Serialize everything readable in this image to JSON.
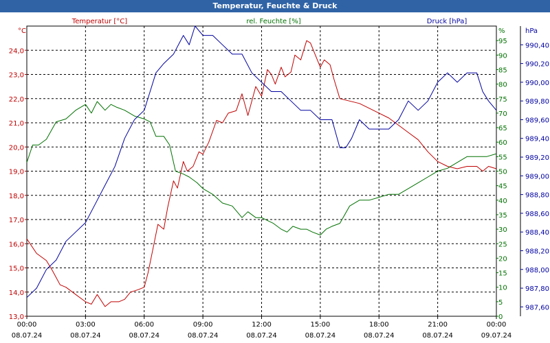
{
  "window": {
    "title": "Temperatur, Feuchte & Druck"
  },
  "chart_data": {
    "type": "line",
    "title": "Temperatur, Feuchte & Druck",
    "grid": true,
    "x_ticks": [
      {
        "time": "00:00",
        "date": "08.07.24"
      },
      {
        "time": "03:00",
        "date": "08.07.24"
      },
      {
        "time": "06:00",
        "date": "08.07.24"
      },
      {
        "time": "09:00",
        "date": "08.07.24"
      },
      {
        "time": "12:00",
        "date": "08.07.24"
      },
      {
        "time": "15:00",
        "date": "08.07.24"
      },
      {
        "time": "18:00",
        "date": "08.07.24"
      },
      {
        "time": "21:00",
        "date": "08.07.24"
      },
      {
        "time": "00:00",
        "date": "09.07.24"
      }
    ],
    "x_range_hours": [
      0,
      24
    ],
    "axes": {
      "left": {
        "unit": "°C",
        "color": "#c00000",
        "range": [
          13.0,
          25.0
        ],
        "ticks": [
          "13,0",
          "14,0",
          "15,0",
          "16,0",
          "17,0",
          "18,0",
          "19,0",
          "20,0",
          "21,0",
          "22,0",
          "23,0",
          "24,0"
        ]
      },
      "mid": {
        "unit": "%",
        "color": "#007000",
        "range": [
          0,
          100
        ],
        "ticks": [
          "0",
          "5",
          "10",
          "15",
          "20",
          "25",
          "30",
          "35",
          "40",
          "45",
          "50",
          "55",
          "60",
          "65",
          "70",
          "75",
          "80",
          "85",
          "90",
          "95"
        ]
      },
      "right": {
        "unit": "hPa",
        "color": "#0000a0",
        "range": [
          987.5,
          990.6
        ],
        "ticks": [
          "987,60",
          "987,80",
          "988,00",
          "988,20",
          "988,40",
          "988,60",
          "988,80",
          "989,00",
          "989,20",
          "989,40",
          "989,60",
          "989,80",
          "990,00",
          "990,20",
          "990,40"
        ]
      }
    },
    "series": [
      {
        "name": "Temperatur [°C]",
        "color": "#c00000",
        "axis": "left",
        "x": [
          0,
          0.5,
          1,
          1.3,
          1.7,
          2,
          2.5,
          3,
          3.3,
          3.6,
          4,
          4.3,
          4.7,
          5,
          5.3,
          5.7,
          6,
          6.2,
          6.5,
          6.7,
          7,
          7.2,
          7.5,
          7.7,
          8,
          8.2,
          8.5,
          8.8,
          9,
          9.3,
          9.7,
          10,
          10.3,
          10.7,
          11,
          11.3,
          11.7,
          12,
          12.3,
          12.5,
          12.7,
          13,
          13.2,
          13.5,
          13.7,
          14,
          14.3,
          14.5,
          14.7,
          15,
          15.2,
          15.5,
          15.7,
          16,
          16.5,
          17,
          17.5,
          18,
          18.5,
          19,
          19.5,
          20,
          20.5,
          21,
          21.5,
          22,
          22.5,
          23,
          23.3,
          23.6,
          24
        ],
        "y": [
          16.2,
          15.6,
          15.3,
          14.9,
          14.3,
          14.2,
          13.9,
          13.6,
          13.5,
          13.9,
          13.4,
          13.6,
          13.6,
          13.7,
          14.0,
          14.1,
          14.2,
          14.8,
          16.0,
          16.8,
          16.6,
          17.5,
          18.6,
          18.3,
          19.4,
          19.0,
          19.2,
          19.8,
          19.7,
          20.2,
          21.1,
          21.0,
          21.4,
          21.5,
          22.2,
          21.3,
          22.5,
          22.1,
          23.2,
          23.0,
          22.6,
          23.3,
          22.9,
          23.1,
          23.8,
          23.6,
          24.4,
          24.3,
          23.9,
          23.3,
          23.6,
          23.4,
          22.8,
          22.0,
          21.9,
          21.8,
          21.6,
          21.4,
          21.2,
          20.9,
          20.6,
          20.3,
          19.8,
          19.4,
          19.2,
          19.1,
          19.2,
          19.2,
          19.0,
          19.2,
          19.1
        ]
      },
      {
        "name": "rel. Feuchte [%]",
        "color": "#007000",
        "axis": "mid",
        "x": [
          0,
          0.3,
          0.6,
          1,
          1.5,
          2,
          2.5,
          3,
          3.3,
          3.6,
          4,
          4.3,
          4.6,
          5,
          5.5,
          6,
          6.3,
          6.6,
          7,
          7.3,
          7.6,
          8,
          8.3,
          8.7,
          9,
          9.5,
          10,
          10.5,
          11,
          11.3,
          11.7,
          12,
          12.3,
          12.6,
          13,
          13.3,
          13.6,
          14,
          14.3,
          14.6,
          15,
          15.3,
          15.6,
          16,
          16.5,
          17,
          17.5,
          18,
          18.5,
          19,
          19.5,
          20,
          20.5,
          21,
          21.5,
          22,
          22.5,
          23,
          23.5,
          24
        ],
        "y": [
          53,
          59,
          59,
          61,
          67,
          68,
          71,
          73,
          70,
          74,
          71,
          73,
          72,
          71,
          69,
          68,
          67,
          62,
          62,
          59,
          50,
          49,
          48,
          46,
          44,
          42,
          39,
          38,
          34,
          36,
          34,
          34,
          33,
          32,
          30,
          29,
          31,
          30,
          30,
          29,
          28,
          30,
          31,
          32,
          38,
          40,
          40,
          41,
          42,
          42,
          44,
          46,
          48,
          50,
          51,
          53,
          55,
          55,
          55,
          56
        ]
      },
      {
        "name": "Druck [hPa]",
        "color": "#0000a0",
        "axis": "right",
        "x": [
          0,
          0.5,
          1,
          1.5,
          2,
          2.5,
          3,
          3.5,
          4,
          4.5,
          5,
          5.5,
          6,
          6.3,
          6.6,
          7,
          7.5,
          8,
          8.3,
          8.6,
          9,
          9.5,
          10,
          10.5,
          11,
          11.5,
          12,
          12.5,
          13,
          13.5,
          14,
          14.5,
          15,
          15.3,
          15.6,
          16,
          16.3,
          16.6,
          17,
          17.5,
          18,
          18.5,
          19,
          19.5,
          20,
          20.5,
          21,
          21.5,
          22,
          22.5,
          23,
          23.3,
          23.6,
          24
        ],
        "y": [
          987.7,
          987.8,
          988.0,
          988.1,
          988.3,
          988.4,
          988.5,
          988.7,
          988.9,
          989.1,
          989.4,
          989.6,
          989.7,
          989.9,
          990.1,
          990.2,
          990.3,
          990.5,
          990.4,
          990.6,
          990.5,
          990.5,
          990.4,
          990.3,
          990.3,
          990.1,
          990.0,
          989.9,
          989.9,
          989.8,
          989.7,
          989.7,
          989.6,
          989.6,
          989.6,
          989.3,
          989.3,
          989.4,
          989.6,
          989.5,
          989.5,
          989.5,
          989.6,
          989.8,
          989.7,
          989.8,
          990.0,
          990.1,
          990.0,
          990.1,
          990.1,
          989.9,
          989.8,
          989.7
        ]
      }
    ]
  }
}
